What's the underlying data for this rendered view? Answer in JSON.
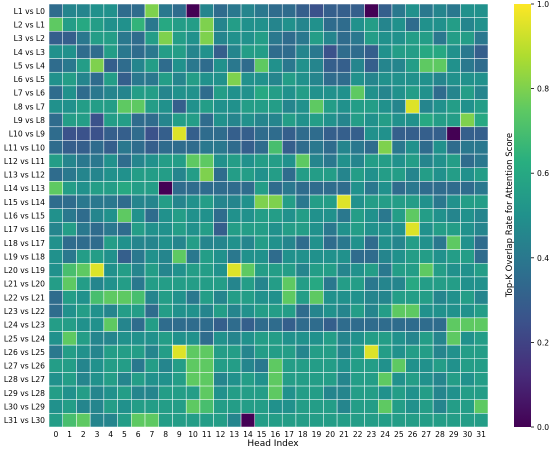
{
  "chart_data": {
    "type": "heatmap",
    "title": "",
    "xlabel": "Head Index",
    "ylabel": "",
    "x_ticks": [
      "0",
      "1",
      "2",
      "3",
      "4",
      "5",
      "6",
      "7",
      "8",
      "9",
      "10",
      "11",
      "12",
      "13",
      "14",
      "15",
      "16",
      "17",
      "18",
      "19",
      "20",
      "21",
      "22",
      "23",
      "24",
      "25",
      "26",
      "27",
      "28",
      "29",
      "30",
      "31"
    ],
    "y_ticks": [
      "L1 vs L0",
      "L2 vs L1",
      "L3 vs L2",
      "L4 vs L3",
      "L5 vs L4",
      "L6 vs L5",
      "L7 vs L6",
      "L8 vs L7",
      "L9 vs L8",
      "L10 vs L9",
      "L11 vs L10",
      "L12 vs L11",
      "L13 vs L12",
      "L14 vs L13",
      "L15 vs L14",
      "L16 vs L15",
      "L17 vs L16",
      "L18 vs L17",
      "L19 vs L18",
      "L20 vs L19",
      "L21 vs L20",
      "L22 vs L21",
      "L23 vs L22",
      "L24 vs L23",
      "L25 vs L24",
      "L26 vs L25",
      "L27 vs L26",
      "L28 vs L27",
      "L29 vs L28",
      "L30 vs L29",
      "L31 vs L30"
    ],
    "colorbar": {
      "label": "Top-K Overlap Rate for Attention Score",
      "ticks": [
        "0.0",
        "0.2",
        "0.4",
        "0.6",
        "0.8",
        "1.0"
      ],
      "range": [
        0,
        1
      ],
      "colormap": "viridis"
    },
    "values": [
      [
        0.35,
        0.45,
        0.45,
        0.5,
        0.5,
        0.35,
        0.35,
        0.8,
        0.4,
        0.35,
        0.0,
        0.45,
        0.35,
        0.4,
        0.45,
        0.4,
        0.35,
        0.35,
        0.3,
        0.25,
        0.3,
        0.3,
        0.3,
        0.0,
        0.3,
        0.4,
        0.5,
        0.4,
        0.45,
        0.4,
        0.5,
        0.5
      ],
      [
        0.75,
        0.55,
        0.6,
        0.55,
        0.5,
        0.5,
        0.65,
        0.4,
        0.6,
        0.55,
        0.55,
        0.8,
        0.45,
        0.55,
        0.5,
        0.5,
        0.45,
        0.5,
        0.45,
        0.5,
        0.35,
        0.35,
        0.5,
        0.55,
        0.45,
        0.5,
        0.35,
        0.5,
        0.5,
        0.55,
        0.45,
        0.5
      ],
      [
        0.3,
        0.3,
        0.4,
        0.55,
        0.55,
        0.4,
        0.35,
        0.55,
        0.8,
        0.55,
        0.5,
        0.8,
        0.45,
        0.5,
        0.5,
        0.55,
        0.4,
        0.35,
        0.4,
        0.55,
        0.45,
        0.35,
        0.4,
        0.55,
        0.5,
        0.5,
        0.55,
        0.55,
        0.4,
        0.55,
        0.55,
        0.4
      ],
      [
        0.5,
        0.5,
        0.35,
        0.35,
        0.55,
        0.4,
        0.35,
        0.4,
        0.55,
        0.55,
        0.45,
        0.5,
        0.3,
        0.45,
        0.55,
        0.55,
        0.35,
        0.35,
        0.45,
        0.4,
        0.25,
        0.35,
        0.35,
        0.3,
        0.5,
        0.55,
        0.55,
        0.6,
        0.6,
        0.5,
        0.4,
        0.3
      ],
      [
        0.35,
        0.4,
        0.55,
        0.8,
        0.3,
        0.35,
        0.45,
        0.55,
        0.35,
        0.5,
        0.4,
        0.35,
        0.5,
        0.4,
        0.35,
        0.75,
        0.5,
        0.4,
        0.5,
        0.45,
        0.3,
        0.3,
        0.45,
        0.3,
        0.45,
        0.45,
        0.55,
        0.75,
        0.75,
        0.5,
        0.4,
        0.35
      ],
      [
        0.5,
        0.55,
        0.45,
        0.35,
        0.55,
        0.3,
        0.4,
        0.4,
        0.55,
        0.45,
        0.55,
        0.5,
        0.5,
        0.8,
        0.5,
        0.5,
        0.45,
        0.55,
        0.5,
        0.45,
        0.35,
        0.35,
        0.5,
        0.45,
        0.5,
        0.5,
        0.5,
        0.5,
        0.45,
        0.5,
        0.5,
        0.5
      ],
      [
        0.35,
        0.5,
        0.35,
        0.4,
        0.45,
        0.45,
        0.55,
        0.55,
        0.45,
        0.5,
        0.5,
        0.35,
        0.55,
        0.5,
        0.5,
        0.6,
        0.55,
        0.5,
        0.55,
        0.5,
        0.5,
        0.5,
        0.75,
        0.5,
        0.45,
        0.5,
        0.55,
        0.5,
        0.35,
        0.45,
        0.55,
        0.45
      ],
      [
        0.5,
        0.5,
        0.55,
        0.55,
        0.55,
        0.75,
        0.75,
        0.55,
        0.5,
        0.3,
        0.5,
        0.55,
        0.5,
        0.5,
        0.55,
        0.55,
        0.55,
        0.45,
        0.5,
        0.75,
        0.55,
        0.5,
        0.55,
        0.55,
        0.5,
        0.45,
        0.95,
        0.45,
        0.5,
        0.55,
        0.5,
        0.55
      ],
      [
        0.35,
        0.55,
        0.55,
        0.25,
        0.55,
        0.55,
        0.35,
        0.35,
        0.45,
        0.55,
        0.55,
        0.35,
        0.5,
        0.45,
        0.5,
        0.45,
        0.45,
        0.55,
        0.5,
        0.55,
        0.5,
        0.45,
        0.55,
        0.5,
        0.55,
        0.5,
        0.5,
        0.6,
        0.55,
        0.55,
        0.8,
        0.6
      ],
      [
        0.35,
        0.25,
        0.25,
        0.25,
        0.3,
        0.3,
        0.35,
        0.25,
        0.3,
        0.95,
        0.3,
        0.35,
        0.35,
        0.3,
        0.3,
        0.35,
        0.35,
        0.3,
        0.35,
        0.35,
        0.3,
        0.3,
        0.3,
        0.5,
        0.5,
        0.3,
        0.3,
        0.3,
        0.3,
        0.0,
        0.3,
        0.3
      ],
      [
        0.35,
        0.3,
        0.3,
        0.35,
        0.3,
        0.4,
        0.35,
        0.3,
        0.35,
        0.35,
        0.35,
        0.4,
        0.4,
        0.35,
        0.3,
        0.35,
        0.7,
        0.3,
        0.35,
        0.4,
        0.35,
        0.45,
        0.4,
        0.35,
        0.8,
        0.4,
        0.5,
        0.35,
        0.5,
        0.35,
        0.4,
        0.4
      ],
      [
        0.55,
        0.45,
        0.4,
        0.4,
        0.5,
        0.35,
        0.45,
        0.5,
        0.55,
        0.55,
        0.75,
        0.75,
        0.5,
        0.55,
        0.5,
        0.55,
        0.55,
        0.5,
        0.75,
        0.45,
        0.4,
        0.5,
        0.45,
        0.55,
        0.55,
        0.5,
        0.55,
        0.45,
        0.5,
        0.55,
        0.35,
        0.4
      ],
      [
        0.35,
        0.4,
        0.45,
        0.45,
        0.5,
        0.5,
        0.55,
        0.55,
        0.55,
        0.45,
        0.55,
        0.8,
        0.35,
        0.55,
        0.55,
        0.5,
        0.55,
        0.35,
        0.55,
        0.55,
        0.55,
        0.45,
        0.55,
        0.5,
        0.55,
        0.55,
        0.45,
        0.55,
        0.5,
        0.55,
        0.5,
        0.55
      ],
      [
        0.75,
        0.55,
        0.5,
        0.55,
        0.55,
        0.6,
        0.55,
        0.55,
        0.0,
        0.35,
        0.35,
        0.35,
        0.35,
        0.35,
        0.35,
        0.55,
        0.35,
        0.4,
        0.35,
        0.35,
        0.35,
        0.35,
        0.5,
        0.4,
        0.5,
        0.35,
        0.4,
        0.35,
        0.35,
        0.35,
        0.35,
        0.4
      ],
      [
        0.35,
        0.35,
        0.4,
        0.4,
        0.4,
        0.35,
        0.45,
        0.45,
        0.55,
        0.45,
        0.5,
        0.55,
        0.45,
        0.45,
        0.5,
        0.8,
        0.8,
        0.55,
        0.4,
        0.55,
        0.55,
        0.95,
        0.5,
        0.55,
        0.55,
        0.55,
        0.55,
        0.5,
        0.4,
        0.5,
        0.55,
        0.55
      ],
      [
        0.5,
        0.4,
        0.35,
        0.45,
        0.5,
        0.75,
        0.5,
        0.35,
        0.5,
        0.55,
        0.5,
        0.5,
        0.35,
        0.5,
        0.5,
        0.55,
        0.55,
        0.5,
        0.55,
        0.5,
        0.5,
        0.4,
        0.55,
        0.5,
        0.4,
        0.55,
        0.75,
        0.55,
        0.5,
        0.45,
        0.5,
        0.45
      ],
      [
        0.45,
        0.55,
        0.4,
        0.35,
        0.4,
        0.35,
        0.55,
        0.5,
        0.5,
        0.55,
        0.5,
        0.55,
        0.3,
        0.55,
        0.55,
        0.55,
        0.5,
        0.55,
        0.55,
        0.5,
        0.4,
        0.5,
        0.55,
        0.5,
        0.5,
        0.5,
        0.95,
        0.5,
        0.55,
        0.55,
        0.5,
        0.45
      ],
      [
        0.5,
        0.35,
        0.35,
        0.35,
        0.55,
        0.5,
        0.45,
        0.45,
        0.5,
        0.45,
        0.55,
        0.45,
        0.45,
        0.5,
        0.45,
        0.55,
        0.5,
        0.45,
        0.35,
        0.5,
        0.35,
        0.4,
        0.5,
        0.35,
        0.5,
        0.45,
        0.55,
        0.5,
        0.4,
        0.75,
        0.5,
        0.35
      ],
      [
        0.5,
        0.4,
        0.55,
        0.55,
        0.5,
        0.3,
        0.4,
        0.5,
        0.45,
        0.75,
        0.4,
        0.55,
        0.5,
        0.4,
        0.5,
        0.5,
        0.35,
        0.5,
        0.5,
        0.5,
        0.5,
        0.5,
        0.35,
        0.35,
        0.45,
        0.5,
        0.55,
        0.55,
        0.5,
        0.55,
        0.55,
        0.35
      ],
      [
        0.5,
        0.7,
        0.75,
        0.95,
        0.5,
        0.55,
        0.45,
        0.55,
        0.45,
        0.5,
        0.55,
        0.55,
        0.5,
        0.95,
        0.75,
        0.55,
        0.55,
        0.55,
        0.45,
        0.55,
        0.55,
        0.45,
        0.5,
        0.55,
        0.4,
        0.55,
        0.55,
        0.75,
        0.55,
        0.5,
        0.5,
        0.55
      ],
      [
        0.55,
        0.75,
        0.55,
        0.45,
        0.5,
        0.55,
        0.4,
        0.55,
        0.55,
        0.55,
        0.55,
        0.55,
        0.55,
        0.45,
        0.55,
        0.45,
        0.55,
        0.75,
        0.55,
        0.6,
        0.4,
        0.55,
        0.55,
        0.4,
        0.45,
        0.45,
        0.6,
        0.55,
        0.55,
        0.55,
        0.5,
        0.5
      ],
      [
        0.35,
        0.55,
        0.5,
        0.7,
        0.75,
        0.75,
        0.7,
        0.45,
        0.55,
        0.5,
        0.4,
        0.55,
        0.45,
        0.55,
        0.55,
        0.5,
        0.5,
        0.75,
        0.55,
        0.75,
        0.5,
        0.5,
        0.5,
        0.45,
        0.45,
        0.55,
        0.55,
        0.55,
        0.45,
        0.5,
        0.55,
        0.45
      ],
      [
        0.35,
        0.5,
        0.55,
        0.5,
        0.45,
        0.55,
        0.55,
        0.35,
        0.55,
        0.5,
        0.5,
        0.45,
        0.55,
        0.45,
        0.5,
        0.55,
        0.55,
        0.55,
        0.35,
        0.45,
        0.5,
        0.45,
        0.55,
        0.45,
        0.55,
        0.75,
        0.75,
        0.5,
        0.5,
        0.5,
        0.5,
        0.55
      ],
      [
        0.55,
        0.55,
        0.5,
        0.5,
        0.75,
        0.45,
        0.35,
        0.55,
        0.35,
        0.35,
        0.35,
        0.35,
        0.3,
        0.35,
        0.3,
        0.35,
        0.35,
        0.3,
        0.35,
        0.35,
        0.3,
        0.35,
        0.35,
        0.35,
        0.35,
        0.35,
        0.35,
        0.35,
        0.35,
        0.75,
        0.75,
        0.75
      ],
      [
        0.5,
        0.75,
        0.55,
        0.45,
        0.45,
        0.5,
        0.5,
        0.5,
        0.55,
        0.5,
        0.5,
        0.35,
        0.5,
        0.45,
        0.5,
        0.55,
        0.55,
        0.5,
        0.5,
        0.5,
        0.55,
        0.45,
        0.5,
        0.55,
        0.55,
        0.5,
        0.45,
        0.55,
        0.45,
        0.75,
        0.5,
        0.55
      ],
      [
        0.4,
        0.55,
        0.5,
        0.45,
        0.55,
        0.55,
        0.55,
        0.45,
        0.55,
        0.95,
        0.75,
        0.75,
        0.55,
        0.55,
        0.45,
        0.55,
        0.55,
        0.55,
        0.45,
        0.55,
        0.55,
        0.45,
        0.55,
        0.95,
        0.55,
        0.5,
        0.55,
        0.55,
        0.45,
        0.5,
        0.55,
        0.55
      ],
      [
        0.55,
        0.55,
        0.45,
        0.5,
        0.55,
        0.55,
        0.4,
        0.55,
        0.45,
        0.55,
        0.75,
        0.75,
        0.55,
        0.55,
        0.45,
        0.4,
        0.75,
        0.55,
        0.55,
        0.55,
        0.55,
        0.5,
        0.55,
        0.55,
        0.5,
        0.75,
        0.5,
        0.5,
        0.55,
        0.5,
        0.55,
        0.55
      ],
      [
        0.5,
        0.55,
        0.45,
        0.5,
        0.55,
        0.45,
        0.55,
        0.5,
        0.5,
        0.55,
        0.75,
        0.75,
        0.45,
        0.5,
        0.55,
        0.5,
        0.75,
        0.55,
        0.55,
        0.55,
        0.55,
        0.45,
        0.55,
        0.55,
        0.75,
        0.5,
        0.55,
        0.5,
        0.45,
        0.55,
        0.5,
        0.55
      ],
      [
        0.55,
        0.5,
        0.55,
        0.45,
        0.5,
        0.55,
        0.45,
        0.45,
        0.55,
        0.55,
        0.55,
        0.75,
        0.5,
        0.55,
        0.55,
        0.55,
        0.75,
        0.5,
        0.55,
        0.55,
        0.45,
        0.45,
        0.55,
        0.55,
        0.5,
        0.55,
        0.5,
        0.55,
        0.45,
        0.5,
        0.55,
        0.55
      ],
      [
        0.5,
        0.55,
        0.45,
        0.45,
        0.55,
        0.5,
        0.55,
        0.55,
        0.55,
        0.55,
        0.75,
        0.7,
        0.55,
        0.55,
        0.55,
        0.55,
        0.5,
        0.5,
        0.55,
        0.55,
        0.55,
        0.45,
        0.55,
        0.55,
        0.75,
        0.55,
        0.5,
        0.55,
        0.45,
        0.55,
        0.55,
        0.75
      ],
      [
        0.55,
        0.7,
        0.75,
        0.45,
        0.45,
        0.55,
        0.75,
        0.75,
        0.55,
        0.55,
        0.55,
        0.55,
        0.55,
        0.45,
        0.0,
        0.55,
        0.55,
        0.55,
        0.55,
        0.55,
        0.55,
        0.55,
        0.55,
        0.55,
        0.55,
        0.55,
        0.55,
        0.55,
        0.55,
        0.55,
        0.55,
        0.55
      ]
    ]
  }
}
